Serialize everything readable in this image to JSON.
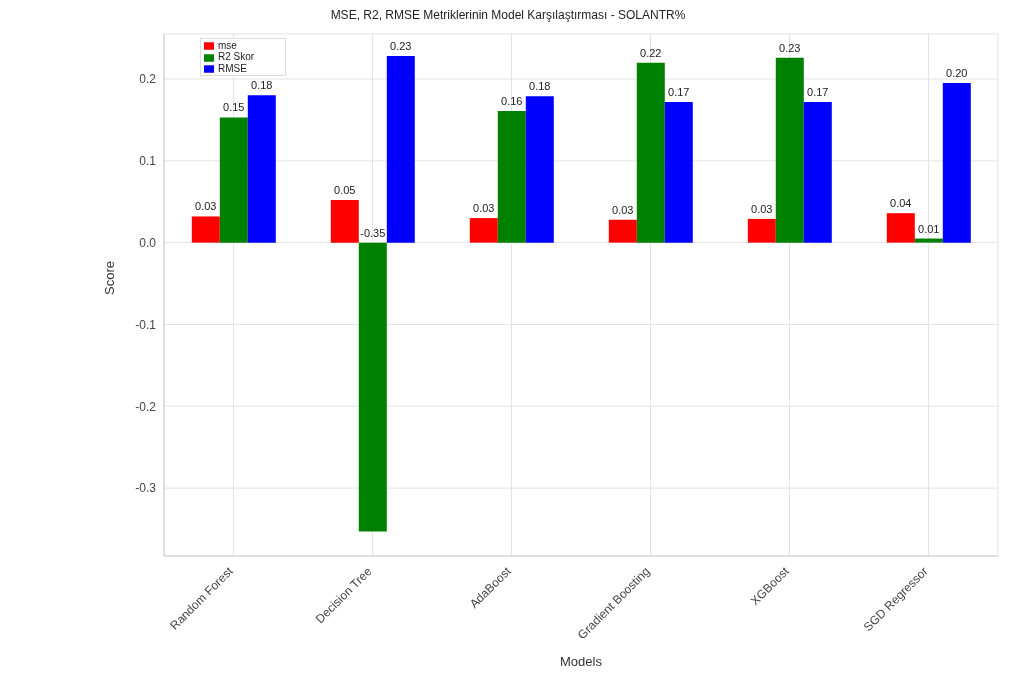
{
  "chart_data": {
    "type": "bar",
    "title": "MSE, R2, RMSE Metriklerinin Model Karşılaştırması - SOLANTR%",
    "xlabel": "Models",
    "ylabel": "Score",
    "categories": [
      "Random Forest",
      "Decision Tree",
      "AdaBoost",
      "Gradient Boosting",
      "XGBoost",
      "SGD Regressor"
    ],
    "series": [
      {
        "name": "mse",
        "color": "#ff0000",
        "values": [
          0.032,
          0.052,
          0.03,
          0.028,
          0.029,
          0.036
        ],
        "value_labels": [
          "0.03",
          "0.05",
          "0.03",
          "0.03",
          "0.03",
          "0.04"
        ]
      },
      {
        "name": "R2 Skor",
        "color": "#008000",
        "values": [
          0.153,
          -0.353,
          0.161,
          0.22,
          0.226,
          0.005
        ],
        "value_labels": [
          "0.15",
          "-0.35",
          "0.16",
          "0.22",
          "0.23",
          "0.01"
        ]
      },
      {
        "name": "RMSE",
        "color": "#0000ff",
        "values": [
          0.18,
          0.228,
          0.179,
          0.172,
          0.172,
          0.195
        ],
        "value_labels": [
          "0.18",
          "0.23",
          "0.18",
          "0.17",
          "0.17",
          "0.20"
        ]
      }
    ],
    "ylim": [
      -0.383,
      0.255
    ],
    "yticks": [
      {
        "value": -0.3,
        "label": "-0.3"
      },
      {
        "value": -0.2,
        "label": "-0.2"
      },
      {
        "value": -0.1,
        "label": "-0.1"
      },
      {
        "value": 0,
        "label": "0.0"
      },
      {
        "value": 0.1,
        "label": "0.1"
      },
      {
        "value": 0.2,
        "label": "0.2"
      }
    ],
    "grid": true,
    "legend": "top left"
  }
}
